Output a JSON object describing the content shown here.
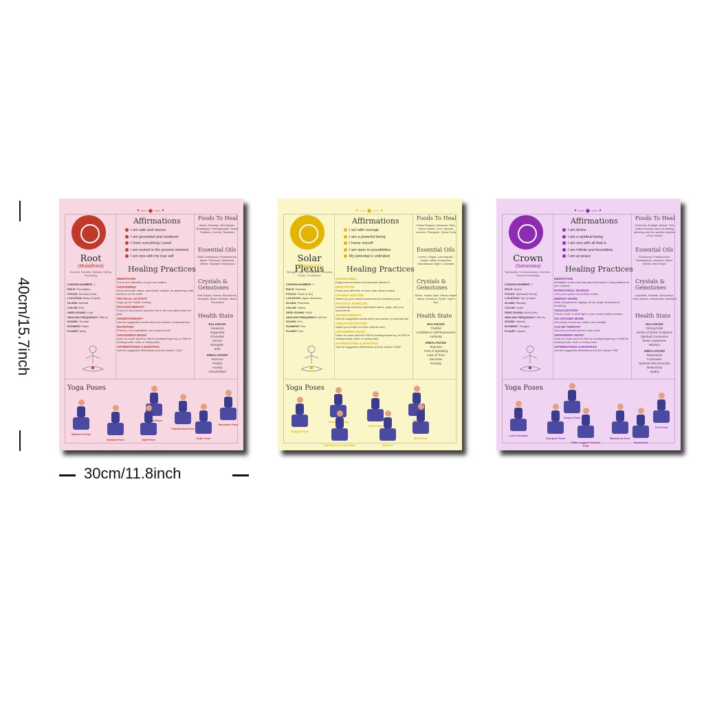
{
  "dimensions": {
    "height_label": "40cm/15.7inch",
    "width_label": "30cm/11.8inch"
  },
  "colors": {
    "root_bg": "#f7d7e2",
    "root_accent": "#c0392b",
    "solar_bg": "#fbf6c8",
    "solar_accent": "#e3b400",
    "crown_bg": "#efd5f2",
    "crown_accent": "#8e2bb5",
    "pose_top": "#3b3b8f",
    "pose_legs": "#4a4aa3"
  },
  "posters": [
    {
      "name": "Root",
      "sanskrit": "(Muladhara)",
      "desc": "Survival, Security, Stability, Safety, Grounding",
      "facts": [
        {
          "k": "CHAKRA NUMBER:",
          "v": "1"
        },
        {
          "k": "ROLE:",
          "v": "Foundation"
        },
        {
          "k": "FOCUS:",
          "v": "Survival (I Am)"
        },
        {
          "k": "LOCATION:",
          "v": "Base of Spine"
        },
        {
          "k": "GLAND:",
          "v": "Adrenal"
        },
        {
          "k": "COLOR:",
          "v": "Red"
        },
        {
          "k": "SEED SOUND:",
          "v": "LAM"
        },
        {
          "k": "HEALING FREQUENCY:",
          "v": "396 Hz"
        },
        {
          "k": "SOUND:",
          "v": "Thunder"
        },
        {
          "k": "ELEMENT:",
          "v": "Earth"
        },
        {
          "k": "PLANET:",
          "v": "Mars"
        }
      ],
      "affirmations_title": "Affirmations",
      "affirmations": [
        "I am safe and secure",
        "I am grounded and centered",
        "I have everything I need",
        "I am rooted in the present moment",
        "I am one with my true self"
      ],
      "healing_title": "Healing Practices",
      "healing": [
        {
          "h": "MEDITATION",
          "t": "Focus your attention on your root chakra"
        },
        {
          "h": "GROUNDING",
          "t": "Reconnect with nature, spend time outside, do gardening, walk barefoot on the earth"
        },
        {
          "h": "PHYSICAL ACTIVITY",
          "t": "Yoga, go for a walk, running"
        },
        {
          "h": "PSYCHOTHERAPY",
          "t": "Focus on the present moment, live in the now rather than the past"
        },
        {
          "h": "AROMATHERAPY",
          "t": "Use the suggested scents either as incense or essential oils"
        },
        {
          "h": "NUTRITION",
          "t": "Proteins, root vegetables, red-colored foods"
        },
        {
          "h": "GROUNDING MUSIC",
          "t": "Listen to music tuned to 396 Hz healing frequency, or 396 Hz healing bowls, bells, or tuning forks"
        },
        {
          "h": "AFFIRMATIONS & MANTRAS",
          "t": "Use the suggested affirmations and the mantra \"LAM\""
        }
      ],
      "foods_title": "Foods To Heal",
      "foods": "Beets, Parsnips, Red Apples, Rutabagas, Pomegranates, Sweet Potatoes, Carrots, Tomatoes",
      "oils_title": "Essential Oils",
      "oils": "Atlas Cedarwood, Frankincense, Myrrh, Patchouli, Spikenard, Vetiver, Virginian Cedarwood",
      "crystals_title": "Crystals & Gemstones",
      "crystals": "Red Jasper, Garnet, Bloodstone, Hematite, Black Obsidian, Black Tourmaline",
      "health_title": "Health State",
      "balanced_label": "BALANCED",
      "balanced": [
        "Centered",
        "Supported",
        "Grounded",
        "Secure",
        "Energetic",
        "Safe"
      ],
      "imbalanced_label": "IMBALANCED",
      "imbalanced": [
        "Insecure",
        "Fearful",
        "Anxiety",
        "Unmotivated"
      ],
      "yoga_title": "Yoga Poses",
      "poses": [
        "Bridge Pose",
        "Thunderbolt Pose",
        "Warrior II Pose",
        "Garland Pose",
        "Staff Pose",
        "Chair Pose",
        "Mountain Pose"
      ]
    },
    {
      "name": "Solar Plexus",
      "sanskrit": "(Manipura)",
      "desc": "Strength, Ego, Self-Esteem, Personal Power, Confidence",
      "facts": [
        {
          "k": "CHAKRA NUMBER:",
          "v": "3"
        },
        {
          "k": "ROLE:",
          "v": "Fearless"
        },
        {
          "k": "FOCUS:",
          "v": "Power (I Do)"
        },
        {
          "k": "LOCATION:",
          "v": "Upper Abdomen"
        },
        {
          "k": "GLAND:",
          "v": "Pancreas"
        },
        {
          "k": "COLOR:",
          "v": "Yellow"
        },
        {
          "k": "SEED SOUND:",
          "v": "RAM"
        },
        {
          "k": "HEALING FREQUENCY:",
          "v": "528 Hz"
        },
        {
          "k": "SOUND:",
          "v": "Fire"
        },
        {
          "k": "ELEMENT:",
          "v": "Fire"
        },
        {
          "k": "PLANET:",
          "v": "Sun"
        }
      ],
      "affirmations_title": "Affirmations",
      "affirmations": [
        "I act with courage",
        "I am a powerful being",
        "I honor myself",
        "I am open to possibilities",
        "My potential is unlimited"
      ],
      "healing_title": "Healing Practices",
      "healing": [
        {
          "h": "SUN BATHING",
          "t": "Enjoy extra sunshine and increase vitamin D"
        },
        {
          "h": "MEDITATION",
          "t": "Focus your attention on your solar plexus chakra"
        },
        {
          "h": "CHANGE ROUTINE",
          "t": "Switch up your normal routine and try something new"
        },
        {
          "h": "PHYSICAL EXERCISE",
          "t": "Consistently exercise; implement dance, yoga, and core movements"
        },
        {
          "h": "AROMATHERAPY",
          "t": "Use the suggested scents either as incense or essential oils"
        },
        {
          "h": "CIRCADIAN RHYTHM",
          "t": "Adjust your body's 24-hour internal clock"
        },
        {
          "h": "GROUNDING MUSIC",
          "t": "Listen to music tuned to 528 Hz healing frequency, or 528 Hz healing bowls, bells, or tuning forks"
        },
        {
          "h": "AFFIRMATIONS & MANTRAS",
          "t": "Use the suggested affirmations and the mantra \"RAM\""
        }
      ],
      "foods_title": "Foods To Heal",
      "foods": "Yellow Peppers, Bananas, Oats, Yellow Lentils, Corn, Squash, Lemons, Pineapple, Yellow Curry",
      "oils_title": "Essential Oils",
      "oils": "Lemon, Ginger, Lemongrass, Juniper, Atlas Cedarwood, Sandalwood, Myrrh, Lavender",
      "crystals_title": "Crystals & Gemstones",
      "crystals": "Citrine, Yellow Jade, Yellow Jasper, Topaz, Sunstone, Pyrite, Tiger's Eye",
      "health_title": "Health State",
      "balanced_label": "BALANCED",
      "balanced": [
        "Truthful",
        "Confident in Self-Expression",
        "Authentic"
      ],
      "imbalanced_label": "IMBALANCED",
      "imbalanced": [
        "Shyness",
        "Fear of Speaking",
        "Lack of Trust",
        "Secretive",
        "Gossipy"
      ],
      "yoga_title": "Yoga Poses",
      "poses": [
        "Triangle Pose",
        "Downward Dog",
        "Boat Pose",
        "Plank",
        "Bow Pose",
        "Half Knee-to-Chest Pose",
        "Warrior I"
      ]
    },
    {
      "name": "Crown",
      "sanskrit": "(Sahasrara)",
      "desc": "Spirituality, Consciousness, Oneness, Sacred Knowledge",
      "facts": [
        {
          "k": "CHAKRA NUMBER:",
          "v": "7"
        },
        {
          "k": "ROLE:",
          "v": "Divine"
        },
        {
          "k": "FOCUS:",
          "v": "Spiritual (I Know)"
        },
        {
          "k": "LOCATION:",
          "v": "Top of Head"
        },
        {
          "k": "GLAND:",
          "v": "Pituitary"
        },
        {
          "k": "COLOR:",
          "v": "Violet"
        },
        {
          "k": "SEED SOUND:",
          "v": "AUM (Om)"
        },
        {
          "k": "HEALING FREQUENCY:",
          "v": "963 Hz"
        },
        {
          "k": "SOUND:",
          "v": "Silence"
        },
        {
          "k": "ELEMENT:",
          "v": "Thought"
        },
        {
          "k": "PLANET:",
          "v": "Jupiter"
        }
      ],
      "affirmations_title": "Affirmations",
      "affirmations": [
        "I am divine",
        "I am a spiritual being",
        "I am one with all that is",
        "I am infinite and boundless",
        "I am at peace"
      ],
      "healing_title": "Healing Practices",
      "healing": [
        {
          "h": "MEDITATION",
          "t": "Meditation is the most important technique to bring balance to your chakras"
        },
        {
          "h": "INTENTIONAL SILENCE",
          "t": "Limit your speech for periods of time"
        },
        {
          "h": "ENERGY WORK",
          "t": "Reiki, acupuncture, qigong, tai chi, yoga, acupressure, breathing"
        },
        {
          "h": "VISUALIZATION",
          "t": "Picture a ball of violet light in your crown chakra location"
        },
        {
          "h": "GO OUTSIDE MORE",
          "t": "Get plenty of fresh air, nature, and sunlight"
        },
        {
          "h": "COLOR THERAPY",
          "t": "Surround yourself with the color violet"
        },
        {
          "h": "GROUNDING MUSIC",
          "t": "Listen to music tuned to 963 Hz healing frequency, or 963 Hz healing bowls, bells, or tuning forks"
        },
        {
          "h": "AFFIRMATIONS & MANTRAS",
          "t": "Use the suggested affirmations and the mantra \"OM\""
        }
      ],
      "foods_title": "Foods To Heal",
      "foods": "Fresh Air, Sunlight, Nature. This chakra focuses more on fasting, detoxing, and the spiritual aspects of our bodies",
      "oils_title": "Essential Oils",
      "oils": "Rosewood, Frankincense, Sandalwood, Lavender, Myrrh, White Lotus Flower",
      "crystals_title": "Crystals & Gemstones",
      "crystals": "Lepidolite, Selenite, Moonstone, Clear Quartz, Labradorite, Amethyst",
      "health_title": "Health State",
      "balanced_label": "BALANCED",
      "balanced": [
        "Strong Faith",
        "Sense of Divine Guidance",
        "Spiritual Connection",
        "Deep Awareness",
        "Wisdom"
      ],
      "imbalanced_label": "IMBALANCED",
      "imbalanced": [
        "Depression",
        "Frustration",
        "Spiritual Disconnection",
        "Melancholy",
        "Apathy"
      ],
      "yoga_title": "Yoga Poses",
      "poses": [
        "Corpse Pose",
        "Tree Pose",
        "Lotus Position",
        "Scorpion Pose",
        "Wide-Legged Forward Fold",
        "Backbend Pose",
        "Headstand"
      ]
    }
  ]
}
